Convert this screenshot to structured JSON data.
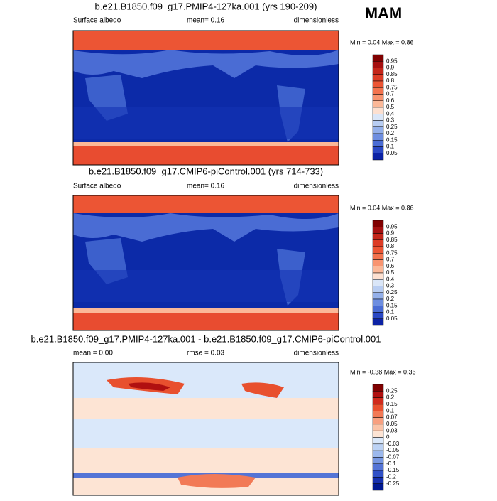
{
  "season": "MAM",
  "panels": [
    {
      "title": "b.e21.B1850.f09_g17.PMIP4-127ka.001 (yrs 190-209)",
      "left": "Surface albedo",
      "middle": "mean=  0.16",
      "right": "dimensionless",
      "minmax": "Min =  0.04 Max =  0.86",
      "levels": [
        "0.95",
        "0.9",
        "0.85",
        "0.8",
        "0.75",
        "0.7",
        "0.6",
        "0.5",
        "0.4",
        "0.3",
        "0.25",
        "0.2",
        "0.15",
        "0.1",
        "0.05"
      ],
      "colors": [
        "#800000",
        "#a51010",
        "#c4261a",
        "#dc3c26",
        "#ec5534",
        "#f3734e",
        "#f89470",
        "#fbb898",
        "#fde0d0",
        "#dae6f8",
        "#b8cdf2",
        "#94b0ea",
        "#6e8ee0",
        "#4a6cd4",
        "#2a48c4",
        "#0c22a4"
      ]
    },
    {
      "title": "b.e21.B1850.f09_g17.CMIP6-piControl.001 (yrs 714-733)",
      "left": "Surface albedo",
      "middle": "mean=  0.16",
      "right": "dimensionless",
      "minmax": "Min =  0.04 Max =  0.86",
      "levels": [
        "0.95",
        "0.9",
        "0.85",
        "0.8",
        "0.75",
        "0.7",
        "0.6",
        "0.5",
        "0.4",
        "0.3",
        "0.25",
        "0.2",
        "0.15",
        "0.1",
        "0.05"
      ],
      "colors": [
        "#800000",
        "#a51010",
        "#c4261a",
        "#dc3c26",
        "#ec5534",
        "#f3734e",
        "#f89470",
        "#fbb898",
        "#fde0d0",
        "#dae6f8",
        "#b8cdf2",
        "#94b0ea",
        "#6e8ee0",
        "#4a6cd4",
        "#2a48c4",
        "#0c22a4"
      ]
    },
    {
      "title": "b.e21.B1850.f09_g17.PMIP4-127ka.001 - b.e21.B1850.f09_g17.CMIP6-piControl.001",
      "left": "mean =  0.00",
      "middle": "rmse =  0.03",
      "right": "dimensionless",
      "minmax": "Min = -0.38 Max =  0.36",
      "levels": [
        "0.25",
        "0.2",
        "0.15",
        "0.1",
        "0.07",
        "0.05",
        "0.03",
        "0",
        "-0.03",
        "-0.05",
        "-0.07",
        "-0.1",
        "-0.15",
        "-0.2",
        "-0.25"
      ],
      "colors": [
        "#800000",
        "#b01010",
        "#d02a1c",
        "#e8502e",
        "#f27a56",
        "#f8a080",
        "#fbc4a8",
        "#fde4d4",
        "#dae8fa",
        "#bcd2f4",
        "#9cb8ec",
        "#7898e2",
        "#5474d6",
        "#3050c6",
        "#1630ae",
        "#001890"
      ]
    }
  ]
}
